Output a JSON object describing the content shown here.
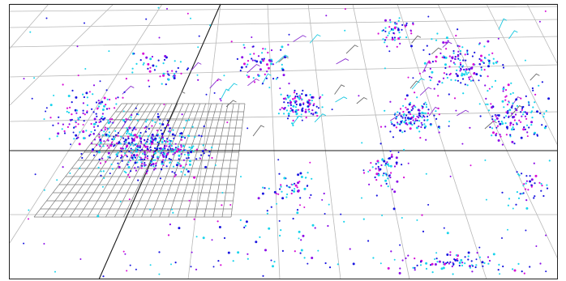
{
  "scene": {
    "background": "#ffffff",
    "frame_color": "#222222",
    "grid_color": "#b8b8b8",
    "local_grid_color": "#7a7a7a",
    "axis_color": "#1a1a1a",
    "point_colors": [
      "#1a16e0",
      "#8a0ce8",
      "#19d4ec",
      "#d60ad6",
      "#1a16e0",
      "#19d4ec"
    ],
    "frustum_colors": [
      "#8a30d0",
      "#19c8e0",
      "#6a6a6a"
    ],
    "frustum_count": 40,
    "cluster_labels": [
      "left-dense-cluster",
      "upper-left-cluster",
      "center-cluster",
      "upper-center-cluster",
      "right-cluster",
      "far-right-cluster",
      "upper-right-cluster",
      "bottom-center-cluster",
      "bottom-right-cluster",
      "mid-lower-cluster"
    ]
  }
}
